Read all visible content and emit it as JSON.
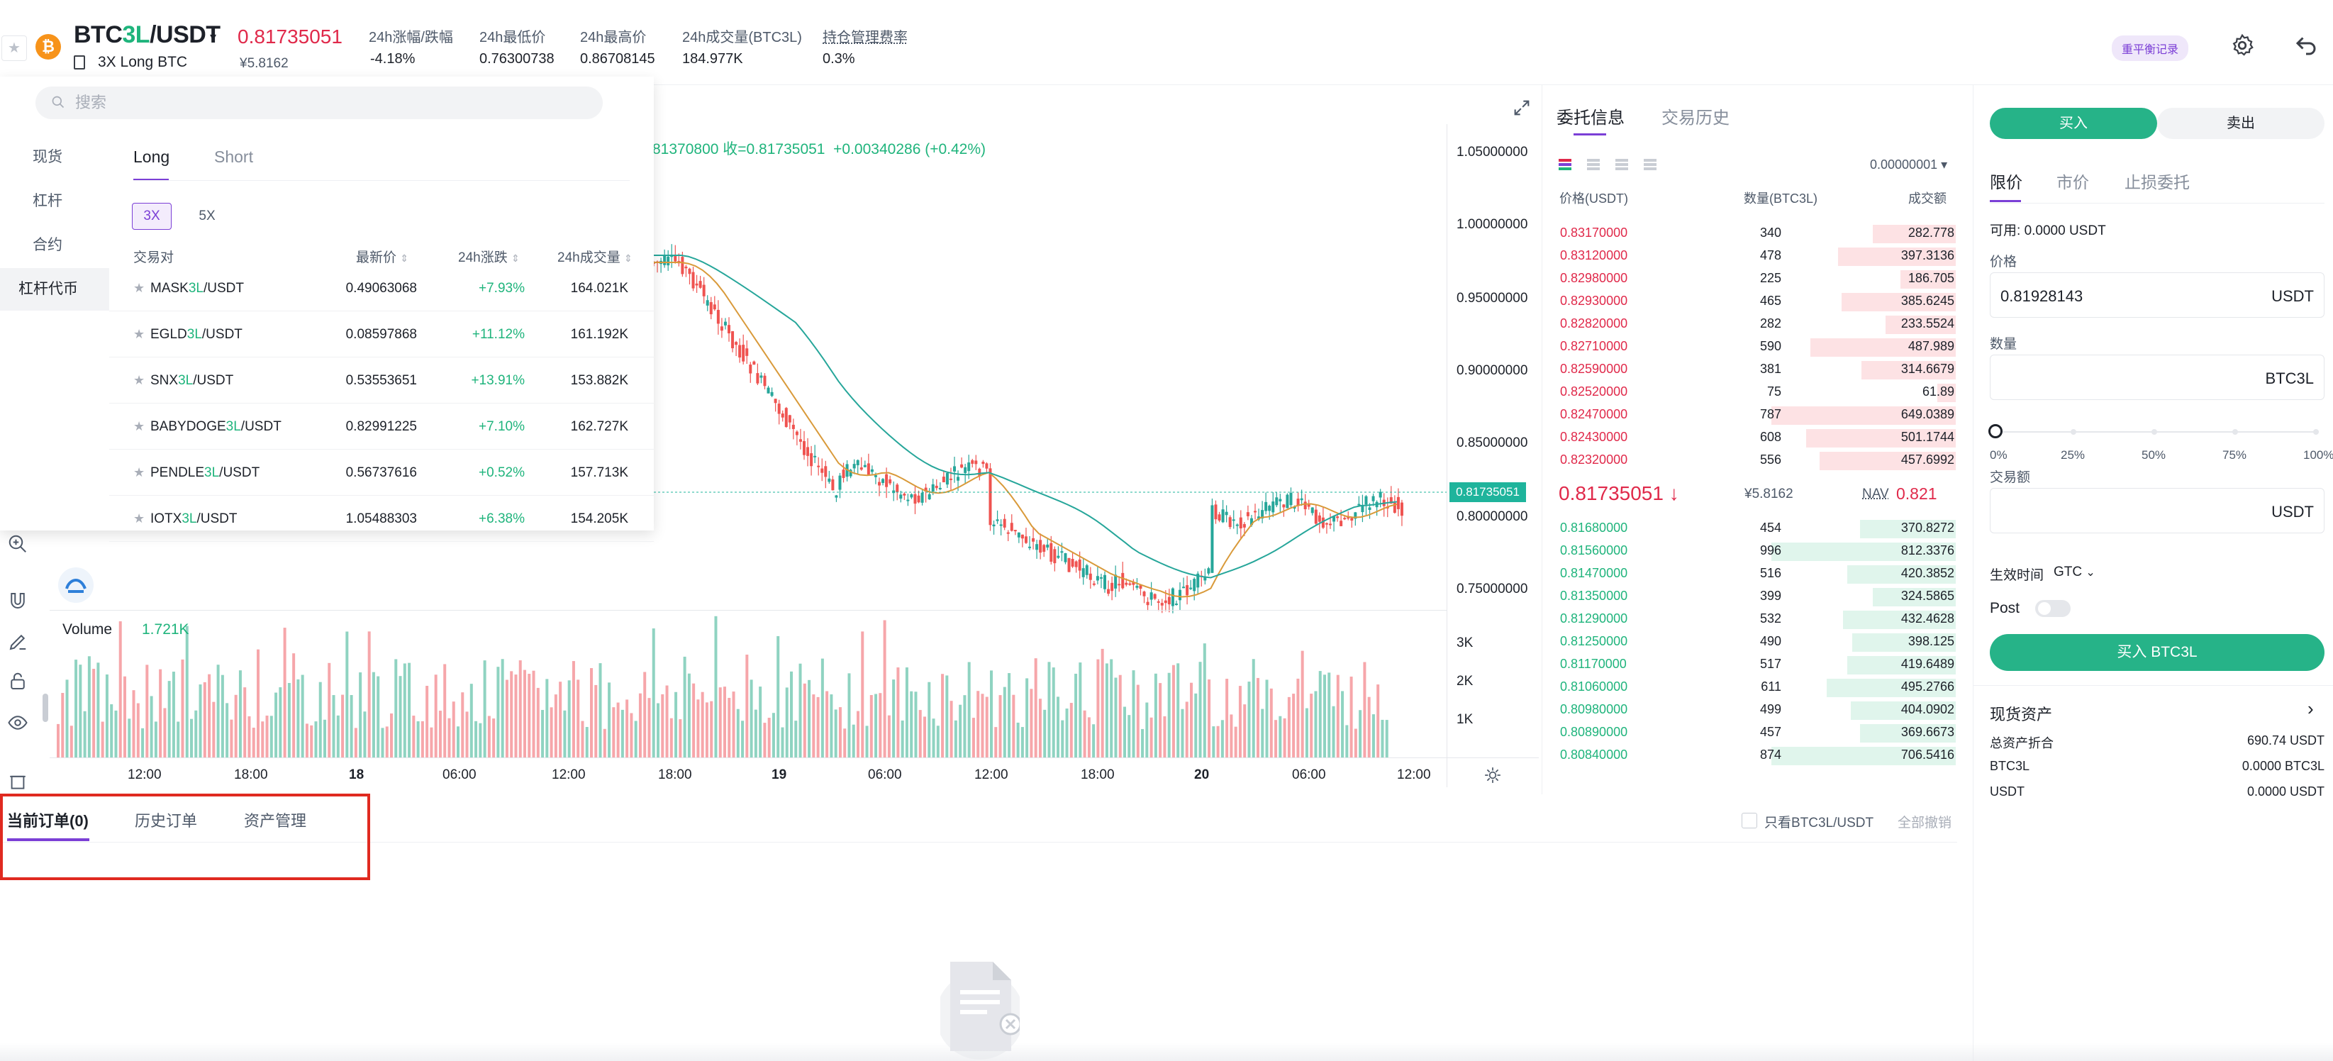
{
  "header": {
    "pair_prefix": "BTC",
    "pair_lev": "3L",
    "pair_suffix": "/USDT",
    "pair_caret": "▾",
    "pair_subtitle": "3X Long BTC",
    "last_price": "0.81735051",
    "last_price_cny": "¥5.8162",
    "stats": [
      {
        "label": "24h涨幅/跌幅",
        "value": "-4.18%"
      },
      {
        "label": "24h最低价",
        "value": "0.76300738"
      },
      {
        "label": "24h最高价",
        "value": "0.86708145"
      },
      {
        "label": "24h成交量(BTC3L)",
        "value": "184.977K"
      },
      {
        "label": "持仓管理费率",
        "value": "0.3%"
      }
    ],
    "rebalance_label": "重平衡记录",
    "fav_icon": "star-icon",
    "coin_icon": "bitcoin-logo-icon",
    "coin_symbol": "₿",
    "settings_icon": "gear-icon",
    "back_icon": "return-icon"
  },
  "market_panel": {
    "search_placeholder": "搜索",
    "categories": [
      "现货",
      "杠杆",
      "合约",
      "杠杆代币"
    ],
    "active_category": "杠杆代币",
    "side_tabs": [
      "Long",
      "Short"
    ],
    "leverages": [
      "3X",
      "5X"
    ],
    "columns": [
      "交易对",
      "最新价",
      "24h涨跌",
      "24h成交量"
    ],
    "sort_glyph": "⇕",
    "rows": [
      {
        "base": "MASK",
        "lev": "3L",
        "quote": "/USDT",
        "price": "0.49063068",
        "change": "+7.93%",
        "volume": "164.021K"
      },
      {
        "base": "EGLD",
        "lev": "3L",
        "quote": "/USDT",
        "price": "0.08597868",
        "change": "+11.12%",
        "volume": "161.192K"
      },
      {
        "base": "SNX",
        "lev": "3L",
        "quote": "/USDT",
        "price": "0.53553651",
        "change": "+13.91%",
        "volume": "153.882K"
      },
      {
        "base": "BABYDOGE",
        "lev": "3L",
        "quote": "/USDT",
        "price": "0.82991225",
        "change": "+7.10%",
        "volume": "162.727K"
      },
      {
        "base": "PENDLE",
        "lev": "3L",
        "quote": "/USDT",
        "price": "0.56737616",
        "change": "+0.52%",
        "volume": "157.713K"
      },
      {
        "base": "IOTX",
        "lev": "3L",
        "quote": "/USDT",
        "price": "1.05488303",
        "change": "+6.38%",
        "volume": "154.205K"
      }
    ]
  },
  "chart": {
    "ohlc_text_a": "81370800  收=0.81735051",
    "ohlc_text_b": "+0.00340286 (+0.42%)",
    "current_price_tag": "0.81735051",
    "volume_label": "Volume",
    "volume_value": "1.721K",
    "y_ticks": [
      "1.05000000",
      "1.00000000",
      "0.95000000",
      "0.90000000",
      "0.85000000",
      "0.80000000",
      "0.75000000"
    ],
    "vol_ticks": [
      "3K",
      "2K",
      "1K"
    ],
    "x_ticks": [
      "12:00",
      "18:00",
      "18",
      "06:00",
      "12:00",
      "18:00",
      "19",
      "06:00",
      "12:00",
      "18:00",
      "20",
      "06:00",
      "12:00"
    ],
    "colors": {
      "up": "#8fd3c1",
      "down": "#f6a6aa",
      "candle_up": "#26a69a",
      "candle_down": "#ef5350",
      "ma_green": "#26a69a",
      "ma_orange": "#d99a3a"
    }
  },
  "orderbook": {
    "tabs": [
      "委托信息",
      "交易历史"
    ],
    "precision": "0.00000001",
    "precision_caret": "▾",
    "headers": [
      "价格(USDT)",
      "数量(BTC3L)",
      "成交额"
    ],
    "asks": [
      {
        "price": "0.83170000",
        "qty": "340",
        "amount": "282.778",
        "depth": 0.45
      },
      {
        "price": "0.83120000",
        "qty": "478",
        "amount": "397.3136",
        "depth": 0.64
      },
      {
        "price": "0.82980000",
        "qty": "225",
        "amount": "186.705",
        "depth": 0.3
      },
      {
        "price": "0.82930000",
        "qty": "465",
        "amount": "385.6245",
        "depth": 0.62
      },
      {
        "price": "0.82820000",
        "qty": "282",
        "amount": "233.5524",
        "depth": 0.38
      },
      {
        "price": "0.82710000",
        "qty": "590",
        "amount": "487.989",
        "depth": 0.79
      },
      {
        "price": "0.82590000",
        "qty": "381",
        "amount": "314.6679",
        "depth": 0.51
      },
      {
        "price": "0.82520000",
        "qty": "75",
        "amount": "61.89",
        "depth": 0.1
      },
      {
        "price": "0.82470000",
        "qty": "787",
        "amount": "649.0389",
        "depth": 1.0
      },
      {
        "price": "0.82430000",
        "qty": "608",
        "amount": "501.1744",
        "depth": 0.81
      },
      {
        "price": "0.82320000",
        "qty": "556",
        "amount": "457.6992",
        "depth": 0.74
      }
    ],
    "mid_price": "0.81735051",
    "mid_arrow": "↓",
    "mid_cny": "¥5.8162",
    "nav_label": "NAV",
    "nav_value": "0.821",
    "bids": [
      {
        "price": "0.81680000",
        "qty": "454",
        "amount": "370.8272",
        "depth": 0.52
      },
      {
        "price": "0.81560000",
        "qty": "996",
        "amount": "812.3376",
        "depth": 1.0
      },
      {
        "price": "0.81470000",
        "qty": "516",
        "amount": "420.3852",
        "depth": 0.59
      },
      {
        "price": "0.81350000",
        "qty": "399",
        "amount": "324.5865",
        "depth": 0.45
      },
      {
        "price": "0.81290000",
        "qty": "532",
        "amount": "432.4628",
        "depth": 0.61
      },
      {
        "price": "0.81250000",
        "qty": "490",
        "amount": "398.125",
        "depth": 0.56
      },
      {
        "price": "0.81170000",
        "qty": "517",
        "amount": "419.6489",
        "depth": 0.59
      },
      {
        "price": "0.81060000",
        "qty": "611",
        "amount": "495.2766",
        "depth": 0.7
      },
      {
        "price": "0.80980000",
        "qty": "499",
        "amount": "404.0902",
        "depth": 0.57
      },
      {
        "price": "0.80890000",
        "qty": "457",
        "amount": "369.6673",
        "depth": 0.52
      },
      {
        "price": "0.80840000",
        "qty": "874",
        "amount": "706.5416",
        "depth": 1.0
      }
    ]
  },
  "trade": {
    "buy_tab": "买入",
    "sell_tab": "卖出",
    "order_types": [
      "限价",
      "市价",
      "止损委托"
    ],
    "available_label": "可用:",
    "available_value": "0.0000 USDT",
    "price_label": "价格",
    "price_value": "0.81928143",
    "price_unit": "USDT",
    "qty_label": "数量",
    "qty_unit": "BTC3L",
    "percent_ticks": [
      "0%",
      "25%",
      "50%",
      "75%",
      "100%"
    ],
    "slider_value": 0,
    "amount_label": "交易额",
    "amount_unit": "USDT",
    "tif_label": "生效时间",
    "tif_value": "GTC",
    "post_label": "Post",
    "submit_label": "买入 BTC3L",
    "assets_title": "现货资产",
    "assets": [
      {
        "k": "总资产折合",
        "v": "690.74 USDT"
      },
      {
        "k": "BTC3L",
        "v": "0.0000 BTC3L"
      },
      {
        "k": "USDT",
        "v": "0.0000 USDT"
      }
    ]
  },
  "orders": {
    "tabs": [
      "当前订单(0)",
      "历史订单",
      "资产管理"
    ],
    "only_pair_label": "只看BTC3L/USDT",
    "cancel_all": "全部撤销",
    "empty_icon": "empty-document-icon"
  }
}
